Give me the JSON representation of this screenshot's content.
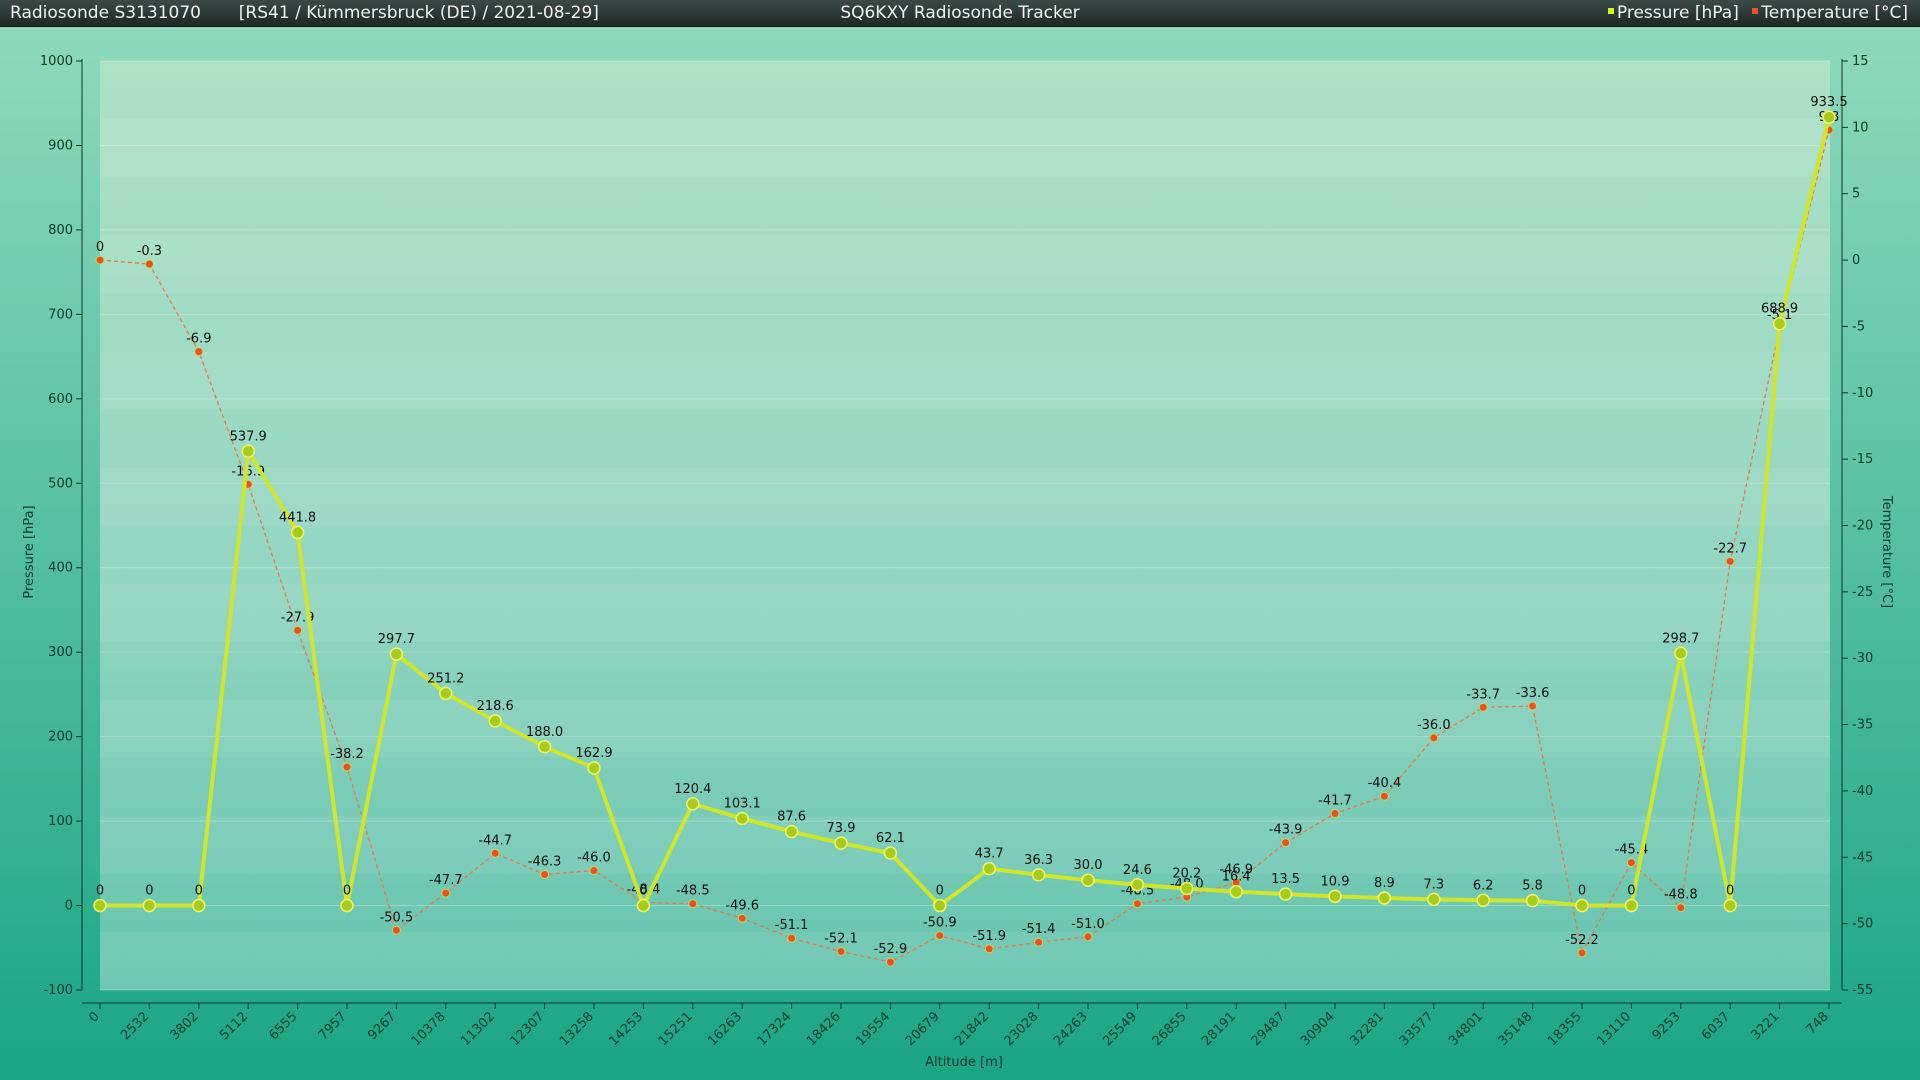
{
  "header": {
    "left_title": "Radiosonde S3131070",
    "left_subtitle": "[RS41 / Kümmersbruck (DE) / 2021-08-29]",
    "center_title": "SQ6KXY Radiosonde Tracker",
    "legend": [
      {
        "label": "Pressure [hPa]",
        "color": "#d8ef2a"
      },
      {
        "label": "Temperature [°C]",
        "color": "#e8502c"
      }
    ]
  },
  "colors": {
    "pressure": "#cfe62a",
    "pressure_marker_fill": "#a9cc1c",
    "temperature": "#e8502c",
    "temperature_line": "#e27a4a",
    "plot_bg_top": "#aee1c6",
    "plot_bg_bottom": "#65c4ae"
  },
  "chart_data": {
    "type": "line",
    "xlabel": "Altitude [m]",
    "ylabel": "Pressure [hPa]",
    "y2label": "Temperature [°C]",
    "ylim": [
      -100,
      1000
    ],
    "y2lim": [
      -55,
      15
    ],
    "yticks": [
      -100,
      0,
      100,
      200,
      300,
      400,
      500,
      600,
      700,
      800,
      900,
      1000
    ],
    "y2ticks": [
      -55,
      -50,
      -45,
      -40,
      -35,
      -30,
      -25,
      -20,
      -15,
      -10,
      -5,
      0,
      5,
      10,
      15
    ],
    "grid": true,
    "legend_position": "top-right",
    "categories": [
      "0",
      "2532",
      "3802",
      "5112",
      "6555",
      "7957",
      "9267",
      "10378",
      "11302",
      "12307",
      "13258",
      "14253",
      "15251",
      "16263",
      "17324",
      "18426",
      "19554",
      "20679",
      "21842",
      "23028",
      "24263",
      "25549",
      "26855",
      "28191",
      "29487",
      "30904",
      "32281",
      "33577",
      "34801",
      "35148",
      "18355",
      "13110",
      "9253",
      "6037",
      "3221",
      "748"
    ],
    "series": [
      {
        "name": "Pressure [hPa]",
        "axis": "left",
        "values": [
          0,
          0,
          0,
          537.9,
          441.8,
          0,
          297.7,
          251.2,
          218.6,
          188.0,
          162.9,
          0,
          120.4,
          103.1,
          87.6,
          73.9,
          62.1,
          0,
          43.7,
          36.3,
          30.0,
          24.6,
          20.2,
          16.4,
          13.5,
          10.9,
          8.9,
          7.3,
          6.2,
          5.8,
          0,
          0,
          298.7,
          0,
          688.9,
          933.5
        ],
        "labels": [
          "0",
          "0",
          "0",
          "537.9",
          "441.8",
          "0",
          "297.7",
          "251.2",
          "218.6",
          "188.0",
          "162.9",
          "0",
          "120.4",
          "103.1",
          "87.6",
          "73.9",
          "62.1",
          "0",
          "43.7",
          "36.3",
          "30.0",
          "24.6",
          "20.2",
          "16.4",
          "13.5",
          "10.9",
          "8.9",
          "7.3",
          "6.2",
          "5.8",
          "0",
          "0",
          "298.7",
          "0",
          "688.9",
          "933.5"
        ]
      },
      {
        "name": "Temperature [°C]",
        "axis": "right",
        "values": [
          0,
          -0.3,
          -6.9,
          -16.9,
          -27.9,
          -38.2,
          -50.5,
          -47.7,
          -44.7,
          -46.3,
          -46.0,
          -48.4,
          -48.5,
          -49.6,
          -51.1,
          -52.1,
          -52.9,
          -50.9,
          -51.9,
          -51.4,
          -51.0,
          -48.5,
          -48.0,
          -46.9,
          -43.9,
          -41.7,
          -40.4,
          -36.0,
          -33.7,
          -33.6,
          -52.2,
          -45.4,
          -48.8,
          -22.7,
          -5.1,
          9.8
        ],
        "labels": [
          "0",
          "-0.3",
          "-6.9",
          "-16.9",
          "-27.9",
          "-38.2",
          "-50.5",
          "-47.7",
          "-44.7",
          "-46.3",
          "-46.0",
          "-48.4",
          "-48.5",
          "-49.6",
          "-51.1",
          "-52.1",
          "-52.9",
          "-50.9",
          "-51.9",
          "-51.4",
          "-51.0",
          "-48.5",
          "-48.0",
          "-46.9",
          "-43.9",
          "-41.7",
          "-40.4",
          "-36.0",
          "-33.7",
          "-33.6",
          "-52.2",
          "-45.4",
          "-48.8",
          "-22.7",
          "-5.1",
          "9.8"
        ]
      }
    ]
  }
}
